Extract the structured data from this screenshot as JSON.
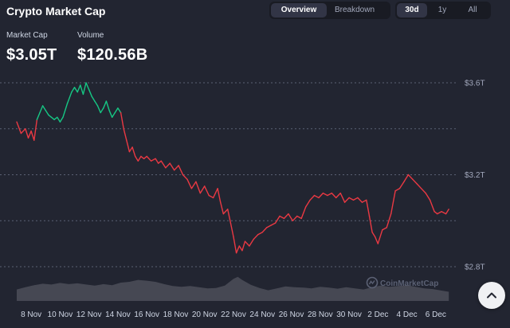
{
  "header": {
    "title": "Crypto Market Cap",
    "view_tabs": [
      {
        "label": "Overview",
        "active": true
      },
      {
        "label": "Breakdown",
        "active": false
      }
    ],
    "range_tabs": [
      {
        "label": "30d",
        "active": true
      },
      {
        "label": "1y",
        "active": false
      },
      {
        "label": "All",
        "active": false
      }
    ]
  },
  "stats": {
    "market_cap": {
      "label": "Market Cap",
      "value": "$3.05T"
    },
    "volume": {
      "label": "Volume",
      "value": "$120.56B"
    }
  },
  "watermark": "CoinMarketCap",
  "colors": {
    "background": "#222531",
    "up": "#16c784",
    "down": "#ea3943",
    "volume_fill": "#4a4d58",
    "grid": "#5b6174"
  },
  "icons": {
    "scroll_top": "chevron-up-icon",
    "logo": "coinmarketcap-logo-icon"
  },
  "chart_data": {
    "type": "line",
    "y_unit": "T USD",
    "y_ticks": [
      {
        "value": 3.6,
        "label": "$3.6T"
      },
      {
        "value": 3.2,
        "label": "$3.2T"
      },
      {
        "value": 2.8,
        "label": "$2.8T"
      }
    ],
    "y_grid": [
      3.6,
      3.4,
      3.2,
      3.0,
      2.8
    ],
    "ylim": [
      2.8,
      3.6
    ],
    "x_ticks": [
      {
        "t": 1,
        "label": "8 Nov"
      },
      {
        "t": 3,
        "label": "10 Nov"
      },
      {
        "t": 5,
        "label": "12 Nov"
      },
      {
        "t": 7,
        "label": "14 Nov"
      },
      {
        "t": 9,
        "label": "16 Nov"
      },
      {
        "t": 11,
        "label": "18 Nov"
      },
      {
        "t": 13,
        "label": "20 Nov"
      },
      {
        "t": 15,
        "label": "22 Nov"
      },
      {
        "t": 17,
        "label": "24 Nov"
      },
      {
        "t": 19,
        "label": "26 Nov"
      },
      {
        "t": 21,
        "label": "28 Nov"
      },
      {
        "t": 23,
        "label": "30 Nov"
      },
      {
        "t": 25,
        "label": "2 Dec"
      },
      {
        "t": 27,
        "label": "4 Dec"
      },
      {
        "t": 29,
        "label": "6 Dec"
      }
    ],
    "reference_value": 3.44,
    "series": [
      {
        "values": [
          [
            0,
            3.43
          ],
          [
            0.3,
            3.38
          ],
          [
            0.6,
            3.4
          ],
          [
            0.8,
            3.36
          ],
          [
            1.0,
            3.39
          ],
          [
            1.2,
            3.35
          ],
          [
            1.4,
            3.44
          ],
          [
            1.6,
            3.47
          ],
          [
            1.8,
            3.5
          ],
          [
            2.0,
            3.48
          ],
          [
            2.2,
            3.46
          ],
          [
            2.4,
            3.45
          ],
          [
            2.6,
            3.44
          ],
          [
            2.8,
            3.45
          ],
          [
            3.0,
            3.43
          ],
          [
            3.2,
            3.45
          ],
          [
            3.5,
            3.51
          ],
          [
            3.8,
            3.56
          ],
          [
            4.0,
            3.58
          ],
          [
            4.2,
            3.56
          ],
          [
            4.4,
            3.59
          ],
          [
            4.6,
            3.55
          ],
          [
            4.8,
            3.6
          ],
          [
            5.0,
            3.57
          ],
          [
            5.2,
            3.54
          ],
          [
            5.4,
            3.52
          ],
          [
            5.6,
            3.5
          ],
          [
            5.8,
            3.47
          ],
          [
            6.0,
            3.49
          ],
          [
            6.2,
            3.52
          ],
          [
            6.4,
            3.48
          ],
          [
            6.6,
            3.45
          ],
          [
            6.8,
            3.47
          ],
          [
            7.0,
            3.49
          ],
          [
            7.2,
            3.47
          ],
          [
            7.4,
            3.4
          ],
          [
            7.6,
            3.35
          ],
          [
            7.8,
            3.3
          ],
          [
            8.0,
            3.32
          ],
          [
            8.2,
            3.28
          ],
          [
            8.4,
            3.26
          ],
          [
            8.6,
            3.28
          ],
          [
            8.8,
            3.27
          ],
          [
            9.0,
            3.28
          ],
          [
            9.3,
            3.26
          ],
          [
            9.6,
            3.27
          ],
          [
            9.8,
            3.25
          ],
          [
            10.0,
            3.26
          ],
          [
            10.3,
            3.23
          ],
          [
            10.6,
            3.25
          ],
          [
            10.9,
            3.22
          ],
          [
            11.2,
            3.24
          ],
          [
            11.5,
            3.2
          ],
          [
            11.8,
            3.18
          ],
          [
            12.1,
            3.14
          ],
          [
            12.4,
            3.17
          ],
          [
            12.7,
            3.12
          ],
          [
            13.0,
            3.15
          ],
          [
            13.3,
            3.11
          ],
          [
            13.6,
            3.1
          ],
          [
            13.9,
            3.14
          ],
          [
            14.1,
            3.08
          ],
          [
            14.3,
            3.03
          ],
          [
            14.6,
            3.05
          ],
          [
            14.8,
            2.99
          ],
          [
            15.0,
            2.93
          ],
          [
            15.2,
            2.86
          ],
          [
            15.4,
            2.89
          ],
          [
            15.6,
            2.87
          ],
          [
            15.8,
            2.91
          ],
          [
            16.1,
            2.89
          ],
          [
            16.4,
            2.92
          ],
          [
            16.7,
            2.94
          ],
          [
            17.0,
            2.95
          ],
          [
            17.3,
            2.97
          ],
          [
            17.6,
            2.98
          ],
          [
            17.9,
            2.99
          ],
          [
            18.2,
            3.02
          ],
          [
            18.5,
            3.01
          ],
          [
            18.8,
            3.03
          ],
          [
            19.1,
            3.0
          ],
          [
            19.4,
            3.02
          ],
          [
            19.7,
            3.01
          ],
          [
            20.0,
            3.06
          ],
          [
            20.3,
            3.09
          ],
          [
            20.6,
            3.11
          ],
          [
            20.9,
            3.1
          ],
          [
            21.2,
            3.12
          ],
          [
            21.5,
            3.11
          ],
          [
            21.8,
            3.12
          ],
          [
            22.1,
            3.1
          ],
          [
            22.4,
            3.12
          ],
          [
            22.7,
            3.08
          ],
          [
            23.0,
            3.1
          ],
          [
            23.3,
            3.09
          ],
          [
            23.6,
            3.1
          ],
          [
            23.9,
            3.08
          ],
          [
            24.2,
            3.09
          ],
          [
            24.4,
            3.02
          ],
          [
            24.6,
            2.95
          ],
          [
            24.8,
            2.93
          ],
          [
            25.0,
            2.9
          ],
          [
            25.3,
            2.96
          ],
          [
            25.6,
            2.97
          ],
          [
            25.9,
            3.03
          ],
          [
            26.2,
            3.13
          ],
          [
            26.5,
            3.14
          ],
          [
            26.8,
            3.17
          ],
          [
            27.1,
            3.2
          ],
          [
            27.4,
            3.18
          ],
          [
            27.7,
            3.16
          ],
          [
            28.0,
            3.14
          ],
          [
            28.3,
            3.12
          ],
          [
            28.6,
            3.09
          ],
          [
            28.9,
            3.04
          ],
          [
            29.1,
            3.03
          ],
          [
            29.4,
            3.04
          ],
          [
            29.7,
            3.03
          ],
          [
            29.9,
            3.05
          ]
        ]
      }
    ],
    "volume": [
      [
        0,
        0.3
      ],
      [
        0.6,
        0.36
      ],
      [
        1.2,
        0.41
      ],
      [
        1.8,
        0.45
      ],
      [
        2.4,
        0.43
      ],
      [
        3.0,
        0.47
      ],
      [
        3.6,
        0.44
      ],
      [
        4.2,
        0.46
      ],
      [
        4.8,
        0.43
      ],
      [
        5.4,
        0.4
      ],
      [
        6.0,
        0.44
      ],
      [
        6.6,
        0.41
      ],
      [
        7.2,
        0.48
      ],
      [
        7.8,
        0.5
      ],
      [
        8.4,
        0.55
      ],
      [
        9.0,
        0.53
      ],
      [
        9.6,
        0.5
      ],
      [
        10.2,
        0.44
      ],
      [
        10.8,
        0.39
      ],
      [
        11.4,
        0.37
      ],
      [
        12.0,
        0.39
      ],
      [
        12.6,
        0.36
      ],
      [
        13.2,
        0.33
      ],
      [
        13.8,
        0.34
      ],
      [
        14.4,
        0.4
      ],
      [
        15.0,
        0.58
      ],
      [
        15.3,
        0.63
      ],
      [
        15.6,
        0.55
      ],
      [
        16.2,
        0.42
      ],
      [
        16.8,
        0.34
      ],
      [
        17.4,
        0.28
      ],
      [
        18.0,
        0.33
      ],
      [
        18.6,
        0.38
      ],
      [
        19.2,
        0.36
      ],
      [
        19.8,
        0.35
      ],
      [
        20.4,
        0.33
      ],
      [
        21.0,
        0.37
      ],
      [
        21.6,
        0.35
      ],
      [
        22.2,
        0.32
      ],
      [
        22.8,
        0.36
      ],
      [
        23.4,
        0.33
      ],
      [
        24.0,
        0.3
      ],
      [
        24.6,
        0.36
      ],
      [
        25.2,
        0.4
      ],
      [
        25.8,
        0.37
      ],
      [
        26.4,
        0.39
      ],
      [
        27.0,
        0.41
      ],
      [
        27.6,
        0.37
      ],
      [
        28.2,
        0.33
      ],
      [
        28.8,
        0.31
      ],
      [
        29.4,
        0.27
      ],
      [
        29.9,
        0.24
      ]
    ]
  }
}
